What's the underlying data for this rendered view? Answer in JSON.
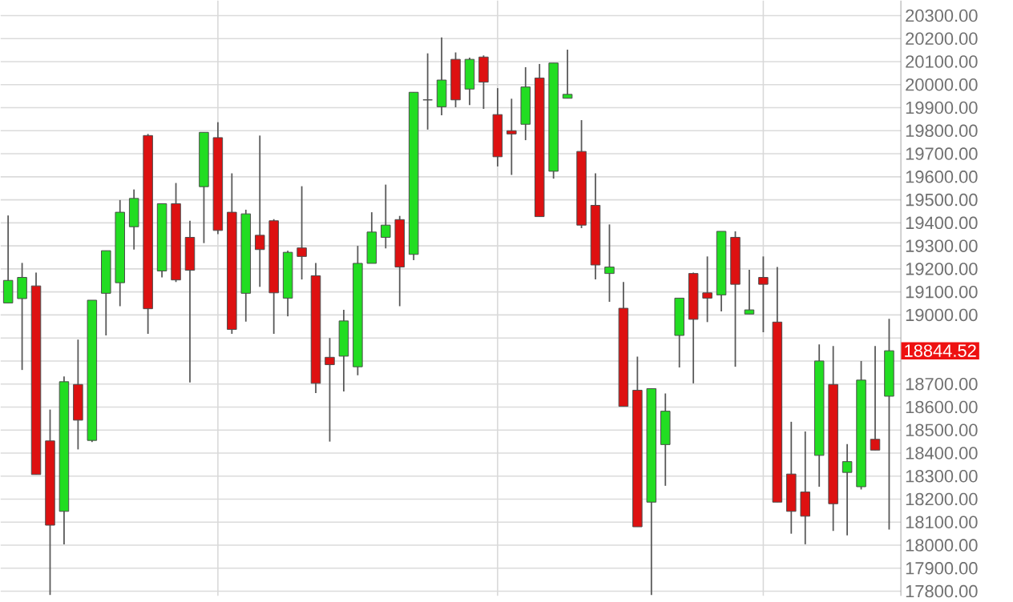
{
  "chart_data": {
    "type": "candlestick",
    "categories": [
      null,
      null,
      null,
      null,
      null,
      null,
      null,
      null,
      null,
      null,
      null,
      null,
      null,
      null,
      null,
      null,
      null,
      null,
      null,
      null,
      null,
      null,
      null,
      null,
      null,
      null,
      null,
      null,
      null,
      null,
      null,
      null,
      null,
      null,
      null,
      null,
      null,
      null,
      null,
      null,
      null,
      null,
      null,
      null,
      null,
      null,
      null,
      null,
      null,
      null,
      null,
      null,
      null,
      null,
      null,
      null,
      null,
      null,
      null,
      null,
      null,
      null,
      null,
      null
    ],
    "ohlc": [
      [
        19052,
        19432,
        19052,
        19150
      ],
      [
        19071,
        19226,
        18761,
        19163
      ],
      [
        19126,
        19184,
        18307,
        18307
      ],
      [
        18453,
        18589,
        17784,
        18087
      ],
      [
        18147,
        18733,
        18004,
        18710
      ],
      [
        18698,
        18893,
        18416,
        18543
      ],
      [
        18455,
        19064,
        18448,
        19064
      ],
      [
        19094,
        19279,
        18911,
        19279
      ],
      [
        19140,
        19499,
        19038,
        19446
      ],
      [
        19383,
        19545,
        19284,
        19506
      ],
      [
        19779,
        19786,
        18918,
        19027
      ],
      [
        19191,
        19483,
        19163,
        19483
      ],
      [
        19483,
        19573,
        19143,
        19152
      ],
      [
        19337,
        19409,
        18707,
        19194
      ],
      [
        19557,
        19793,
        19312,
        19793
      ],
      [
        19770,
        19837,
        19351,
        19367
      ],
      [
        19446,
        19615,
        18918,
        18937
      ],
      [
        19094,
        19457,
        18971,
        19439
      ],
      [
        19346,
        19779,
        19122,
        19284
      ],
      [
        19409,
        19416,
        18918,
        19096
      ],
      [
        19073,
        19279,
        18994,
        19272
      ],
      [
        19291,
        19559,
        19154,
        19254
      ],
      [
        19170,
        19226,
        18661,
        18703
      ],
      [
        18816,
        18900,
        18450,
        18784
      ],
      [
        18821,
        19022,
        18668,
        18974
      ],
      [
        18775,
        19300,
        18738,
        19224
      ],
      [
        19224,
        19446,
        19224,
        19360
      ],
      [
        19337,
        19566,
        19289,
        19390
      ],
      [
        19414,
        19430,
        19038,
        19208
      ],
      [
        19263,
        19967,
        19238,
        19967
      ],
      [
        19934,
        20136,
        19805,
        19934
      ],
      [
        19904,
        20205,
        19867,
        20020
      ],
      [
        20110,
        20140,
        19902,
        19934
      ],
      [
        19981,
        20117,
        19911,
        20110
      ],
      [
        20120,
        20127,
        19895,
        20011
      ],
      [
        19870,
        19985,
        19645,
        19687
      ],
      [
        19800,
        19939,
        19608,
        19786
      ],
      [
        19828,
        20076,
        19759,
        19990
      ],
      [
        20029,
        20090,
        19427,
        19427
      ],
      [
        19624,
        20094,
        19592,
        20094
      ],
      [
        19941,
        20152,
        19941,
        19958
      ],
      [
        19710,
        19846,
        19377,
        19390
      ],
      [
        19476,
        19615,
        19154,
        19217
      ],
      [
        19180,
        19393,
        19057,
        19208
      ],
      [
        19029,
        19143,
        18603,
        18603
      ],
      [
        18673,
        18819,
        18080,
        18080
      ],
      [
        18187,
        18680,
        17784,
        18680
      ],
      [
        18437,
        18659,
        18258,
        18582
      ],
      [
        18911,
        19073,
        18772,
        19073
      ],
      [
        19180,
        19184,
        18703,
        18981
      ],
      [
        19096,
        19254,
        18969,
        19073
      ],
      [
        19087,
        19363,
        19015,
        19363
      ],
      [
        19337,
        19363,
        18775,
        19133
      ],
      [
        19004,
        19196,
        19004,
        19022
      ],
      [
        19163,
        19254,
        18925,
        19133
      ],
      [
        18969,
        19208,
        18187,
        18187
      ],
      [
        18309,
        18536,
        18050,
        18147
      ],
      [
        18231,
        18494,
        18004,
        18126
      ],
      [
        18390,
        18872,
        18254,
        18800
      ],
      [
        18698,
        18865,
        18062,
        18180
      ],
      [
        18316,
        18439,
        18043,
        18363
      ],
      [
        18254,
        18800,
        18242,
        18717
      ],
      [
        18460,
        18865,
        18413,
        18413
      ],
      [
        18647,
        18983,
        18068,
        18844.52
      ]
    ],
    "ylim": [
      17780,
      20365
    ],
    "yticks": [
      {
        "value": 17800,
        "label": "17800.00"
      },
      {
        "value": 17900,
        "label": "17900.00"
      },
      {
        "value": 18000,
        "label": "18000.00"
      },
      {
        "value": 18100,
        "label": "18100.00"
      },
      {
        "value": 18200,
        "label": "18200.00"
      },
      {
        "value": 18300,
        "label": "18300.00"
      },
      {
        "value": 18400,
        "label": "18400.00"
      },
      {
        "value": 18500,
        "label": "18500.00"
      },
      {
        "value": 18600,
        "label": "18600.00"
      },
      {
        "value": 18700,
        "label": "18700.00"
      },
      {
        "value": 18800,
        "label": null
      },
      {
        "value": 18900,
        "label": null
      },
      {
        "value": 19000,
        "label": "19000.00"
      },
      {
        "value": 19100,
        "label": "19100.00"
      },
      {
        "value": 19200,
        "label": "19200.00"
      },
      {
        "value": 19300,
        "label": "19300.00"
      },
      {
        "value": 19400,
        "label": "19400.00"
      },
      {
        "value": 19500,
        "label": "19500.00"
      },
      {
        "value": 19600,
        "label": "19600.00"
      },
      {
        "value": 19700,
        "label": "19700.00"
      },
      {
        "value": 19800,
        "label": "19800.00"
      },
      {
        "value": 19900,
        "label": "19900.00"
      },
      {
        "value": 20000,
        "label": "20000.00"
      },
      {
        "value": 20100,
        "label": "20100.00"
      },
      {
        "value": 20200,
        "label": "20200.00"
      },
      {
        "value": 20300,
        "label": "20300.00"
      }
    ],
    "grid": true,
    "annotations": [
      "18844.52"
    ]
  }
}
